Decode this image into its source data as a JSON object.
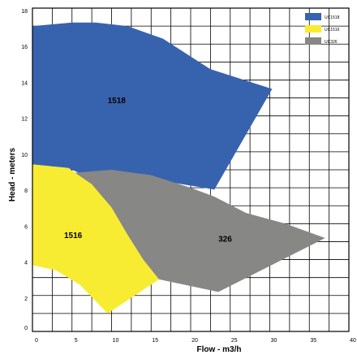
{
  "chart_data": {
    "type": "area",
    "xlabel": "Flow - m3/h",
    "ylabel": "Head - meters",
    "xlim": [
      0,
      40
    ],
    "ylim": [
      0,
      18
    ],
    "x_ticks": [
      0,
      5,
      10,
      15,
      20,
      25,
      30,
      35,
      40
    ],
    "y_ticks": [
      2,
      4,
      6,
      8,
      10,
      12,
      14,
      16,
      18
    ],
    "grid": true,
    "legend_position": "top-right",
    "series": [
      {
        "name": "UC1518",
        "region_label": "1518",
        "color": "#3763ae",
        "label_at": [
          9.5,
          12.7
        ],
        "polygon": [
          [
            0,
            17.0
          ],
          [
            5,
            17.2
          ],
          [
            8,
            17.2
          ],
          [
            12,
            17.0
          ],
          [
            16.5,
            16.3
          ],
          [
            22.5,
            14.6
          ],
          [
            30.3,
            13.5
          ],
          [
            23.0,
            7.9
          ],
          [
            17.5,
            8.3
          ],
          [
            13,
            8.7
          ],
          [
            6,
            8.8
          ],
          [
            4.5,
            9.1
          ],
          [
            0,
            9.3
          ]
        ]
      },
      {
        "name": "UC326",
        "region_label": "326",
        "color": "#878786",
        "label_at": [
          23.5,
          5.0
        ],
        "polygon": [
          [
            4.5,
            8.8
          ],
          [
            10,
            9.0
          ],
          [
            15,
            8.7
          ],
          [
            20,
            8.0
          ],
          [
            23,
            7.5
          ],
          [
            27,
            6.6
          ],
          [
            32,
            6.0
          ],
          [
            37,
            5.2
          ],
          [
            23.5,
            2.2
          ],
          [
            16,
            2.9
          ],
          [
            13,
            4.0
          ],
          [
            10,
            6.0
          ],
          [
            8,
            7.5
          ],
          [
            6,
            8.3
          ]
        ]
      },
      {
        "name": "UC1516",
        "region_label": "1516",
        "color": "#f7ec32",
        "label_at": [
          4.0,
          5.2
        ],
        "polygon": [
          [
            0,
            9.3
          ],
          [
            4.5,
            9.1
          ],
          [
            7.5,
            8.2
          ],
          [
            10,
            6.9
          ],
          [
            12,
            5.4
          ],
          [
            14,
            4.0
          ],
          [
            16,
            2.9
          ],
          [
            9.5,
            1.0
          ],
          [
            6,
            2.6
          ],
          [
            3,
            3.4
          ],
          [
            0,
            3.7
          ]
        ]
      }
    ]
  }
}
